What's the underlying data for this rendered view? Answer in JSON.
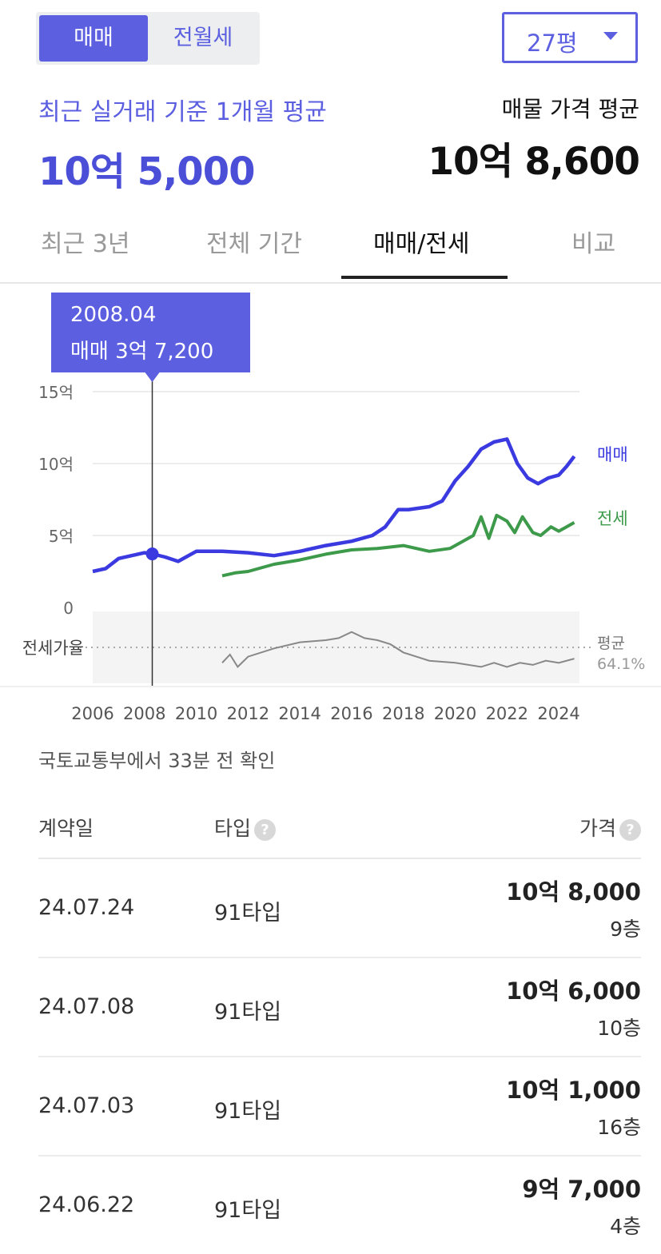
{
  "toggle": {
    "active": "매매",
    "idle": "전월세"
  },
  "size_select": {
    "value": "27평"
  },
  "summary": {
    "recent_label": "최근 실거래 기준 1개월 평균",
    "recent_value": "10억 5,000",
    "ask_label": "매물 가격 평균",
    "ask_value": "10억 8,600"
  },
  "tabs": [
    {
      "label": "최근 3년"
    },
    {
      "label": "전체 기간"
    },
    {
      "label": "매매/전세"
    },
    {
      "label": "비교"
    }
  ],
  "active_tab": "매매/전세",
  "tooltip": {
    "date": "2008.04",
    "text": "매매 3억 7,200"
  },
  "colors": {
    "accent": "#5b5fe0",
    "sale": "#3a3ae0",
    "jeonse": "#3d9a4a",
    "ratio": "#888888"
  },
  "chart_data": {
    "type": "line",
    "ytick_labels": [
      "15억",
      "10억",
      "5억",
      "0"
    ],
    "ylim": [
      0,
      15
    ],
    "xlim": [
      2006,
      2024.8
    ],
    "x_tick_labels": [
      "2006",
      "2008",
      "2010",
      "2012",
      "2014",
      "2016",
      "2018",
      "2020",
      "2022",
      "2024"
    ],
    "grid": true,
    "series": [
      {
        "name": "매매",
        "x": [
          2006.0,
          2006.5,
          2007.0,
          2007.5,
          2008.0,
          2008.3,
          2008.8,
          2009.3,
          2010.0,
          2011.0,
          2012.0,
          2013.0,
          2014.0,
          2015.0,
          2016.0,
          2016.8,
          2017.3,
          2017.8,
          2018.2,
          2019.0,
          2019.5,
          2020.0,
          2020.5,
          2021.0,
          2021.5,
          2022.0,
          2022.4,
          2022.8,
          2023.2,
          2023.6,
          2024.0,
          2024.3,
          2024.6
        ],
        "values": [
          2.5,
          2.7,
          3.4,
          3.6,
          3.8,
          3.72,
          3.5,
          3.2,
          3.9,
          3.9,
          3.8,
          3.6,
          3.9,
          4.3,
          4.6,
          5.0,
          5.6,
          6.8,
          6.8,
          7.0,
          7.4,
          8.8,
          9.8,
          11.0,
          11.5,
          11.7,
          10.0,
          9.0,
          8.6,
          9.0,
          9.2,
          9.8,
          10.5
        ]
      },
      {
        "name": "전세",
        "x": [
          2011.0,
          2011.5,
          2012.0,
          2013.0,
          2014.0,
          2015.0,
          2016.0,
          2017.0,
          2018.0,
          2019.0,
          2019.8,
          2020.3,
          2020.7,
          2021.0,
          2021.3,
          2021.6,
          2022.0,
          2022.3,
          2022.6,
          2023.0,
          2023.3,
          2023.7,
          2024.0,
          2024.3,
          2024.6
        ],
        "values": [
          2.2,
          2.4,
          2.5,
          3.0,
          3.3,
          3.7,
          4.0,
          4.1,
          4.3,
          3.9,
          4.1,
          4.6,
          5.0,
          6.3,
          4.8,
          6.4,
          6.0,
          5.2,
          6.3,
          5.2,
          5.0,
          5.6,
          5.3,
          5.6,
          5.9
        ]
      }
    ],
    "ratio_series": {
      "name": "전세가율",
      "avg_label": "평균",
      "avg_value": "64.1%",
      "x": [
        2011.0,
        2011.3,
        2011.6,
        2012.0,
        2013.0,
        2014.0,
        2015.0,
        2015.5,
        2016.0,
        2016.5,
        2017.0,
        2017.5,
        2018.0,
        2019.0,
        2020.0,
        2021.0,
        2021.5,
        2022.0,
        2022.5,
        2023.0,
        2023.5,
        2024.0,
        2024.6
      ],
      "values": [
        60,
        64,
        58,
        63,
        67,
        70,
        71,
        72,
        75,
        72,
        71,
        69,
        65,
        61,
        60,
        58,
        60,
        58,
        60,
        59,
        61,
        60,
        62
      ]
    },
    "highlight": {
      "x": 2008.3,
      "value": 3.72
    }
  },
  "source_note": "국토교통부에서 33분 전 확인",
  "table": {
    "headers": {
      "date": "계약일",
      "type": "타입",
      "price": "가격"
    },
    "help_glyph": "?",
    "rows": [
      {
        "date": "24.07.24",
        "type": "91타입",
        "price": "10억 8,000",
        "floor": "9층"
      },
      {
        "date": "24.07.08",
        "type": "91타입",
        "price": "10억 6,000",
        "floor": "10층"
      },
      {
        "date": "24.07.03",
        "type": "91타입",
        "price": "10억 1,000",
        "floor": "16층"
      },
      {
        "date": "24.06.22",
        "type": "91타입",
        "price": "9억 7,000",
        "floor": "4층"
      }
    ]
  }
}
